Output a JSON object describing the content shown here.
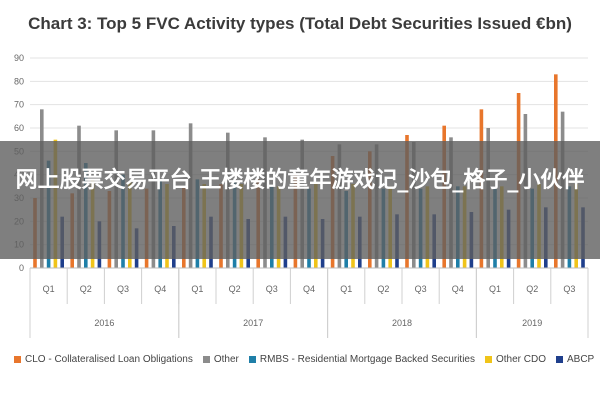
{
  "overlay_text": "网上股票交易平台 王楼楼的童年游戏记_沙包_格子_小伙伴",
  "chart_data": {
    "type": "bar",
    "title": "Chart 3: Top 5 FVC Activity types (Total Debt Securities Issued €bn)",
    "xlabel": "",
    "ylabel": "",
    "ylim": [
      0,
      90
    ],
    "yticks": [
      0,
      10,
      20,
      30,
      40,
      50,
      60,
      70,
      80,
      90
    ],
    "grid": true,
    "legend_position": "bottom",
    "categories": [
      "Q1",
      "Q2",
      "Q3",
      "Q4",
      "Q1",
      "Q2",
      "Q3",
      "Q4",
      "Q1",
      "Q2",
      "Q3",
      "Q4",
      "Q1",
      "Q2",
      "Q3"
    ],
    "groups": [
      {
        "label": "2016",
        "count": 4
      },
      {
        "label": "2017",
        "count": 4
      },
      {
        "label": "2018",
        "count": 4
      },
      {
        "label": "2019",
        "count": 3
      }
    ],
    "series": [
      {
        "name": "CLO - Collateralised Loan Obligations",
        "color": "#e8762c",
        "values": [
          30,
          32,
          33,
          34,
          35,
          36,
          38,
          40,
          48,
          50,
          57,
          61,
          68,
          75,
          83
        ]
      },
      {
        "name": "Other",
        "color": "#8c8c8c",
        "values": [
          68,
          61,
          59,
          59,
          62,
          58,
          56,
          55,
          53,
          53,
          54,
          56,
          60,
          66,
          67
        ]
      },
      {
        "name": "RMBS - Residential Mortgage Backed Securities",
        "color": "#1f7fa8",
        "values": [
          46,
          45,
          40,
          38,
          38,
          37,
          35,
          34,
          33,
          34,
          34,
          35,
          34,
          34,
          35
        ]
      },
      {
        "name": "Other CDO",
        "color": "#f0c419",
        "values": [
          55,
          38,
          37,
          36,
          36,
          36,
          35,
          36,
          36,
          35,
          35,
          35,
          35,
          36,
          36
        ]
      },
      {
        "name": "ABCP",
        "color": "#1f3f8c",
        "values": [
          22,
          20,
          17,
          18,
          22,
          21,
          22,
          21,
          22,
          23,
          23,
          24,
          25,
          26,
          26
        ]
      }
    ]
  }
}
